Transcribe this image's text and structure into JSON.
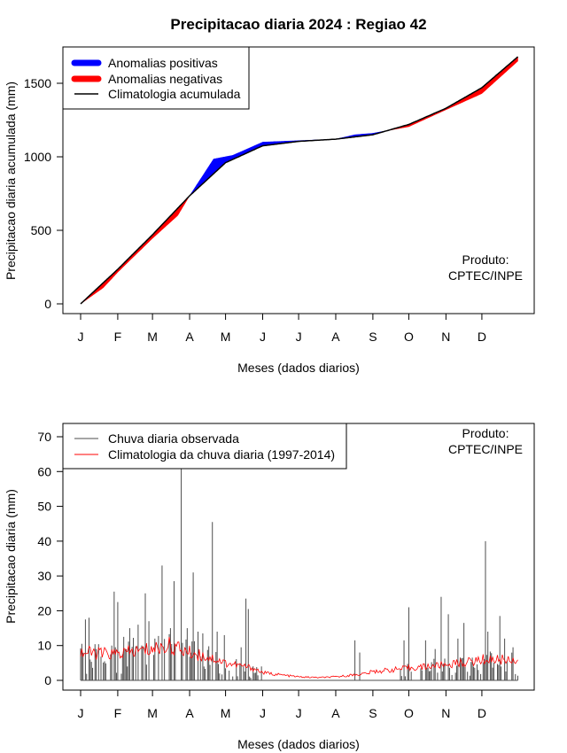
{
  "title": "Precipitacao diaria 2024 : Regiao 42",
  "colors": {
    "positive": "#0000ff",
    "negative": "#ff0000",
    "climatology": "#000000",
    "observed": "#4d4d4d",
    "clim_daily": "#ff0000"
  },
  "chart_data": [
    {
      "type": "area",
      "xlabel": "Meses (dados diarios)",
      "ylabel": "Precipitacao diaria acumulada (mm)",
      "ylim": [
        0,
        1700
      ],
      "yticks": [
        0,
        500,
        1000,
        1500
      ],
      "month_ticks": [
        "J",
        "F",
        "M",
        "A",
        "M",
        "J",
        "J",
        "A",
        "S",
        "O",
        "N",
        "D"
      ],
      "legend": {
        "position": "top-left",
        "entries": [
          "Anomalias positivas",
          "Anomalias negativas",
          "Climatologia acumulada"
        ]
      },
      "annotation": [
        "Produto:",
        "CPTEC/INPE"
      ],
      "series": [
        {
          "name": "Climatologia acumulada",
          "x": [
            1,
            32,
            61,
            92,
            122,
            153,
            183,
            214,
            245,
            275,
            306,
            336,
            366
          ],
          "y": [
            0,
            235,
            470,
            735,
            960,
            1075,
            1105,
            1120,
            1150,
            1220,
            1330,
            1470,
            1680
          ]
        },
        {
          "name": "Observada acumulada",
          "x": [
            1,
            20,
            32,
            61,
            82,
            92,
            112,
            128,
            153,
            183,
            214,
            230,
            245,
            275,
            306,
            336,
            366
          ],
          "y": [
            0,
            110,
            215,
            445,
            600,
            735,
            985,
            1010,
            1100,
            1110,
            1120,
            1150,
            1160,
            1205,
            1320,
            1430,
            1650
          ]
        }
      ]
    },
    {
      "type": "line",
      "xlabel": "Meses (dados diarios)",
      "ylabel": "Precipitacao diaria (mm)",
      "ylim": [
        0,
        70
      ],
      "yticks": [
        0,
        10,
        20,
        30,
        40,
        50,
        60,
        70
      ],
      "month_ticks": [
        "J",
        "F",
        "M",
        "A",
        "M",
        "J",
        "J",
        "A",
        "S",
        "O",
        "N",
        "D"
      ],
      "legend": {
        "position": "top-left",
        "entries": [
          "Chuva diaria observada",
          "Climatologia da chuva diaria (1997-2014)"
        ]
      },
      "annotation": [
        "Produto:",
        "CPTEC/INPE"
      ],
      "series": [
        {
          "name": "Chuva diaria observada",
          "peaks": [
            {
              "day": 2,
              "mm": 10.5
            },
            {
              "day": 5,
              "mm": 17.5
            },
            {
              "day": 8,
              "mm": 18
            },
            {
              "day": 14,
              "mm": 9
            },
            {
              "day": 27,
              "mm": 10
            },
            {
              "day": 29,
              "mm": 25.5
            },
            {
              "day": 32,
              "mm": 22.5
            },
            {
              "day": 37,
              "mm": 12.5
            },
            {
              "day": 42,
              "mm": 15
            },
            {
              "day": 49,
              "mm": 16
            },
            {
              "day": 55,
              "mm": 25
            },
            {
              "day": 58,
              "mm": 17
            },
            {
              "day": 63,
              "mm": 12
            },
            {
              "day": 69,
              "mm": 33
            },
            {
              "day": 76,
              "mm": 15
            },
            {
              "day": 79,
              "mm": 28.5
            },
            {
              "day": 85,
              "mm": 61
            },
            {
              "day": 90,
              "mm": 15
            },
            {
              "day": 95,
              "mm": 31
            },
            {
              "day": 99,
              "mm": 14
            },
            {
              "day": 103,
              "mm": 13.5
            },
            {
              "day": 111,
              "mm": 45.5
            },
            {
              "day": 115,
              "mm": 14
            },
            {
              "day": 121,
              "mm": 13
            },
            {
              "day": 135,
              "mm": 9.5
            },
            {
              "day": 139,
              "mm": 23.5
            },
            {
              "day": 141,
              "mm": 20.5
            },
            {
              "day": 152,
              "mm": 4
            },
            {
              "day": 230,
              "mm": 11.5
            },
            {
              "day": 234,
              "mm": 8
            },
            {
              "day": 271,
              "mm": 11.5
            },
            {
              "day": 275,
              "mm": 21
            },
            {
              "day": 289,
              "mm": 11.5
            },
            {
              "day": 297,
              "mm": 9
            },
            {
              "day": 302,
              "mm": 24
            },
            {
              "day": 308,
              "mm": 19
            },
            {
              "day": 316,
              "mm": 12
            },
            {
              "day": 321,
              "mm": 16.5
            },
            {
              "day": 339,
              "mm": 40
            },
            {
              "day": 341,
              "mm": 14
            },
            {
              "day": 351,
              "mm": 18.5
            },
            {
              "day": 355,
              "mm": 12
            },
            {
              "day": 362,
              "mm": 9.5
            }
          ]
        },
        {
          "name": "Climatologia da chuva diaria (1997-2014)",
          "x": [
            1,
            30,
            61,
            75,
            92,
            110,
            122,
            145,
            153,
            170,
            183,
            200,
            214,
            240,
            245,
            275,
            306,
            330,
            336,
            366
          ],
          "y": [
            8,
            7.5,
            9,
            10,
            8,
            6.5,
            5,
            3.5,
            2.2,
            1.5,
            1,
            0.8,
            1,
            2,
            2.5,
            3.5,
            4.5,
            5.5,
            6,
            6
          ]
        }
      ]
    }
  ]
}
